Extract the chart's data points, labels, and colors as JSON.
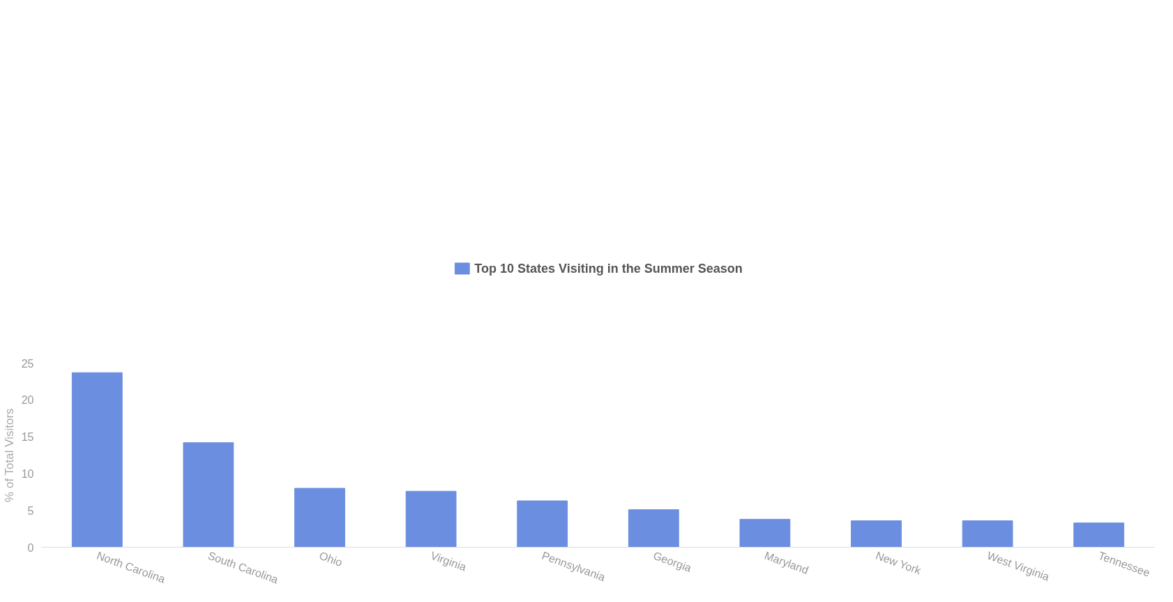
{
  "chart_data": {
    "type": "bar",
    "ylabel": "% of Total Visitors",
    "categories": [
      "North Carolina",
      "South Carolina",
      "Ohio",
      "Virginia",
      "Pennsylvania",
      "Georgia",
      "Maryland",
      "New York",
      "West Virginia",
      "Tennessee"
    ],
    "series": [
      {
        "name": "Top 10 States Visiting in the Summer Season",
        "color": "#6b8ee0",
        "values": [
          23.7,
          14.2,
          8.0,
          7.6,
          6.3,
          5.1,
          3.8,
          3.6,
          3.6,
          3.3
        ]
      }
    ],
    "ylim": [
      0,
      25
    ],
    "yticks": [
      0,
      5,
      10,
      15,
      20,
      25
    ],
    "grid": false,
    "legend": "top"
  }
}
